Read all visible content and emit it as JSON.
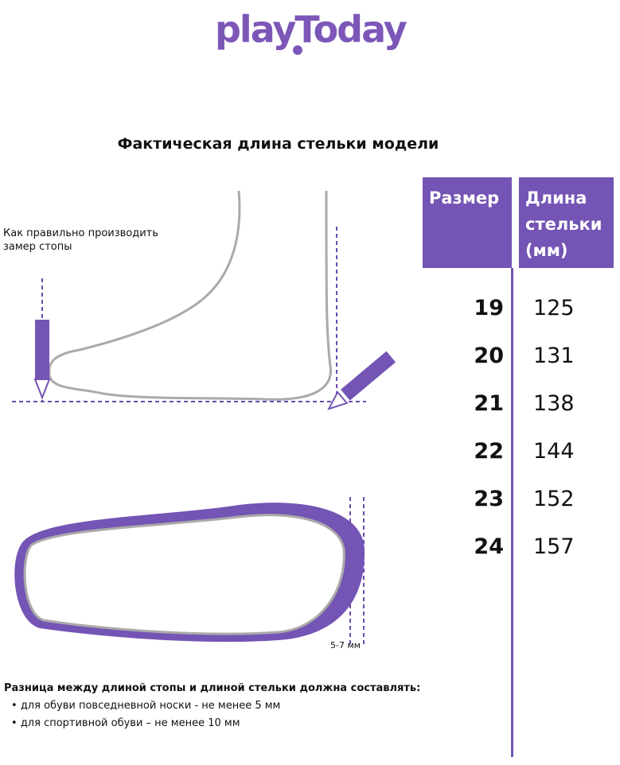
{
  "logo": "playToday",
  "title": "Фактическая длина стельки модели",
  "table": {
    "headers": [
      "Размер",
      "Длина стельки (мм)"
    ],
    "rows": [
      {
        "size": "19",
        "length": "125"
      },
      {
        "size": "20",
        "length": "131"
      },
      {
        "size": "21",
        "length": "138"
      },
      {
        "size": "22",
        "length": "144"
      },
      {
        "size": "23",
        "length": "152"
      },
      {
        "size": "24",
        "length": "157"
      }
    ]
  },
  "measure_note": "Как правильно производить замер стопы",
  "gap_label": "5-7 мм",
  "difference": {
    "heading": "Разница между длиной стопы и длиной стельки должна составлять:",
    "items": [
      "для обуви повседневной носки -  не менее 5 мм",
      "для спортивной обуви – не менее 10 мм"
    ]
  },
  "colors": {
    "accent": "#7454b4",
    "outline": "#aaaaaa"
  }
}
